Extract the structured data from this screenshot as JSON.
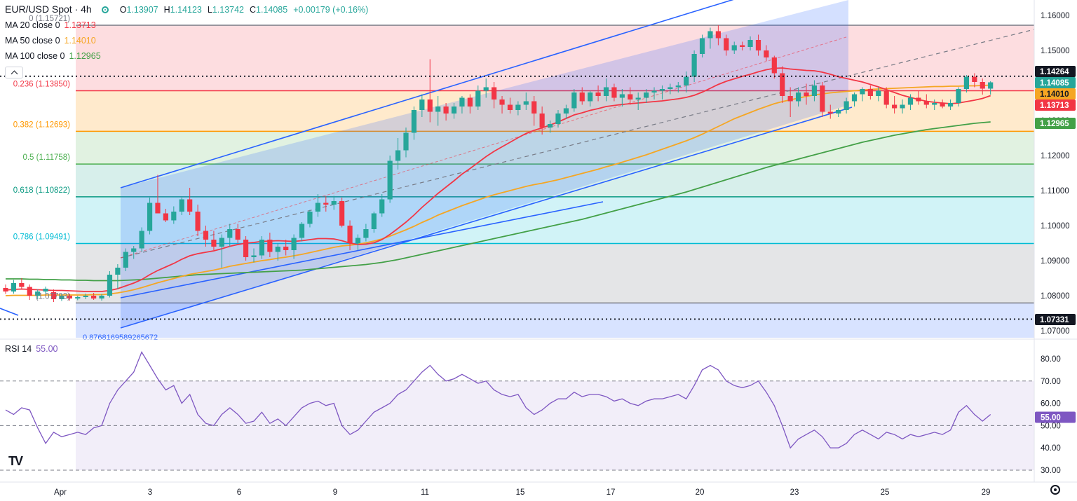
{
  "header": {
    "symbol": "EUR/USD Spot · 4h",
    "open_label": "O",
    "open": "1.13907",
    "high_label": "H",
    "high": "1.14123",
    "low_label": "L",
    "low": "1.13742",
    "close_label": "C",
    "close": "1.14085",
    "change": "+0.00179 (+0.16%)"
  },
  "indicators": [
    {
      "label": "MA 20 close 0",
      "value": "1.13713",
      "color": "#f23645"
    },
    {
      "label": "MA 50 close 0",
      "value": "1.14010",
      "color": "#f5a623"
    },
    {
      "label": "MA 100 close 0",
      "value": "1.12965",
      "color": "#43a047"
    }
  ],
  "rsi": {
    "label": "RSI 14",
    "value": "55.00",
    "color": "#7e57c2"
  },
  "colors": {
    "up": "#26a69a",
    "down": "#f23645",
    "ma20": "#f23645",
    "ma50": "#f5a623",
    "ma100": "#43a047",
    "rsi": "#7e57c2",
    "channel": "#2962ff"
  },
  "chart_data": {
    "type": "candlestick",
    "price_axis": {
      "ticks": [
        "1.16000",
        "1.15000",
        "1.14000",
        "1.13000",
        "1.12000",
        "1.11000",
        "1.10000",
        "1.09000",
        "1.08000",
        "1.07000"
      ],
      "ylim": [
        1.066,
        1.1645
      ]
    },
    "rsi_axis": {
      "ticks": [
        "80.00",
        "70.00",
        "60.00",
        "50.00",
        "40.00",
        "30.00"
      ],
      "ylim": [
        25,
        87
      ],
      "bands": [
        30,
        50,
        70
      ]
    },
    "x_axis": {
      "ticks": [
        "Apr",
        "3",
        "6",
        "9",
        "11",
        "15",
        "17",
        "20",
        "23",
        "25",
        "29"
      ]
    },
    "fib_levels": [
      {
        "ratio": "0",
        "label": "0 (1.15721)",
        "price": 1.15721,
        "color": "#787b86"
      },
      {
        "ratio": "0.236",
        "label": "0.236 (1.13850)",
        "price": 1.1385,
        "color": "#f23645"
      },
      {
        "ratio": "0.382",
        "label": "0.382 (1.12693)",
        "price": 1.12693,
        "color": "#ff9800"
      },
      {
        "ratio": "0.5",
        "label": "0.5 (1.11758)",
        "price": 1.11758,
        "color": "#4caf50"
      },
      {
        "ratio": "0.618",
        "label": "0.618 (1.10822)",
        "price": 1.10822,
        "color": "#089981"
      },
      {
        "ratio": "0.786",
        "label": "0.786 (1.09491)",
        "price": 1.09491,
        "color": "#00bcd4"
      },
      {
        "ratio": "1",
        "label": "(1.07793)",
        "price": 1.07793,
        "color": "#787b86"
      }
    ],
    "fib_bottom_label": "0.8768169589265672",
    "price_labels": [
      {
        "value": "1.14264",
        "price": 1.14264,
        "bg": "#131722",
        "fg": "#ffffff"
      },
      {
        "value": "1.14085",
        "price": 1.14085,
        "bg": "#26a69a",
        "fg": "#ffffff"
      },
      {
        "value": "1.14010",
        "price": 1.1401,
        "bg": "#f5a623",
        "fg": "#131722"
      },
      {
        "value": "1.13713",
        "price": 1.13713,
        "bg": "#f23645",
        "fg": "#ffffff"
      },
      {
        "value": "1.12965",
        "price": 1.12965,
        "bg": "#43a047",
        "fg": "#ffffff"
      },
      {
        "value": "1.07331",
        "price": 1.07331,
        "bg": "#131722",
        "fg": "#ffffff"
      }
    ],
    "dotted_levels": [
      1.14264,
      1.07331
    ],
    "rsi_price_label": {
      "value": "55.00",
      "level": 55,
      "bg": "#7e57c2",
      "fg": "#ffffff"
    },
    "candles": [
      [
        1.0822,
        1.0832,
        1.0805,
        1.0812
      ],
      [
        1.0812,
        1.0845,
        1.0806,
        1.0836
      ],
      [
        1.0836,
        1.085,
        1.0818,
        1.0825
      ],
      [
        1.0825,
        1.0832,
        1.0788,
        1.08
      ],
      [
        1.08,
        1.0818,
        1.079,
        1.0812
      ],
      [
        1.0812,
        1.0826,
        1.0805,
        1.082
      ],
      [
        1.081,
        1.0818,
        1.0782,
        1.079
      ],
      [
        1.079,
        1.0804,
        1.0785,
        1.08
      ],
      [
        1.08,
        1.0806,
        1.0786,
        1.0792
      ],
      [
        1.0792,
        1.08,
        1.0787,
        1.0796
      ],
      [
        1.0796,
        1.0806,
        1.079,
        1.08
      ],
      [
        1.08,
        1.0808,
        1.0788,
        1.0792
      ],
      [
        1.0792,
        1.0805,
        1.0786,
        1.08
      ],
      [
        1.08,
        1.087,
        1.0795,
        1.086
      ],
      [
        1.086,
        1.089,
        1.082,
        1.088
      ],
      [
        1.088,
        1.0935,
        1.087,
        1.0925
      ],
      [
        1.0925,
        1.0942,
        1.0905,
        1.0935
      ],
      [
        1.0935,
        1.0995,
        1.0925,
        1.0985
      ],
      [
        1.0985,
        1.108,
        1.0975,
        1.1065
      ],
      [
        1.1065,
        1.1145,
        1.104,
        1.1035
      ],
      [
        1.1035,
        1.1048,
        1.101,
        1.1015
      ],
      [
        1.1015,
        1.1055,
        1.1005,
        1.104
      ],
      [
        1.104,
        1.108,
        1.103,
        1.1075
      ],
      [
        1.1075,
        1.1108,
        1.103,
        1.104
      ],
      [
        1.104,
        1.106,
        1.097,
        1.0985
      ],
      [
        1.0985,
        1.1,
        1.094,
        1.096
      ],
      [
        1.096,
        1.0985,
        1.093,
        1.094
      ],
      [
        1.094,
        1.0975,
        1.088,
        1.0965
      ],
      [
        1.0965,
        1.1005,
        1.094,
        1.099
      ],
      [
        1.099,
        1.1005,
        1.095,
        1.096
      ],
      [
        1.096,
        1.097,
        1.09,
        1.091
      ],
      [
        1.091,
        1.0935,
        1.0895,
        1.0915
      ],
      [
        1.0915,
        1.097,
        1.0905,
        1.096
      ],
      [
        1.096,
        1.098,
        1.091,
        1.0925
      ],
      [
        1.0925,
        1.095,
        1.09,
        1.094
      ],
      [
        1.094,
        1.096,
        1.0915,
        1.093
      ],
      [
        1.093,
        1.0975,
        1.0905,
        1.0965
      ],
      [
        1.0965,
        1.101,
        1.0955,
        1.1005
      ],
      [
        1.1005,
        1.1045,
        1.0995,
        1.104
      ],
      [
        1.104,
        1.109,
        1.1025,
        1.1065
      ],
      [
        1.1065,
        1.1085,
        1.104,
        1.106
      ],
      [
        1.106,
        1.1085,
        1.1045,
        1.107
      ],
      [
        1.107,
        1.108,
        1.0995,
        1.1
      ],
      [
        1.1,
        1.1015,
        1.093,
        1.095
      ],
      [
        1.095,
        1.0975,
        1.093,
        1.0965
      ],
      [
        1.0965,
        1.1005,
        1.0955,
        1.099
      ],
      [
        1.099,
        1.104,
        1.098,
        1.1035
      ],
      [
        1.1035,
        1.109,
        1.1025,
        1.1075
      ],
      [
        1.1075,
        1.12,
        1.1065,
        1.1185
      ],
      [
        1.1185,
        1.125,
        1.116,
        1.1215
      ],
      [
        1.1215,
        1.128,
        1.1195,
        1.1265
      ],
      [
        1.1265,
        1.134,
        1.1245,
        1.133
      ],
      [
        1.133,
        1.1375,
        1.131,
        1.136
      ],
      [
        1.136,
        1.1475,
        1.1295,
        1.1325
      ],
      [
        1.1325,
        1.137,
        1.1285,
        1.134
      ],
      [
        1.134,
        1.135,
        1.13,
        1.132
      ],
      [
        1.132,
        1.135,
        1.1305,
        1.134
      ],
      [
        1.134,
        1.137,
        1.132,
        1.1365
      ],
      [
        1.1365,
        1.1375,
        1.132,
        1.134
      ],
      [
        1.134,
        1.14,
        1.133,
        1.1385
      ],
      [
        1.1385,
        1.142,
        1.1365,
        1.1395
      ],
      [
        1.1395,
        1.141,
        1.1335,
        1.136
      ],
      [
        1.136,
        1.137,
        1.132,
        1.1345
      ],
      [
        1.1345,
        1.1365,
        1.132,
        1.133
      ],
      [
        1.133,
        1.1355,
        1.1315,
        1.1345
      ],
      [
        1.1345,
        1.138,
        1.133,
        1.1355
      ],
      [
        1.1355,
        1.137,
        1.1285,
        1.132
      ],
      [
        1.132,
        1.134,
        1.126,
        1.128
      ],
      [
        1.128,
        1.13,
        1.1265,
        1.129
      ],
      [
        1.129,
        1.133,
        1.128,
        1.132
      ],
      [
        1.132,
        1.1345,
        1.1305,
        1.1335
      ],
      [
        1.1335,
        1.139,
        1.1325,
        1.138
      ],
      [
        1.138,
        1.1395,
        1.1345,
        1.1355
      ],
      [
        1.1355,
        1.1385,
        1.134,
        1.138
      ],
      [
        1.138,
        1.14,
        1.1355,
        1.137
      ],
      [
        1.137,
        1.142,
        1.1355,
        1.1395
      ],
      [
        1.1395,
        1.1405,
        1.1355,
        1.1365
      ],
      [
        1.1365,
        1.139,
        1.134,
        1.1375
      ],
      [
        1.1375,
        1.1395,
        1.1345,
        1.136
      ],
      [
        1.136,
        1.138,
        1.133,
        1.1365
      ],
      [
        1.1365,
        1.139,
        1.135,
        1.138
      ],
      [
        1.138,
        1.1395,
        1.136,
        1.1385
      ],
      [
        1.1385,
        1.14,
        1.136,
        1.139
      ],
      [
        1.139,
        1.1405,
        1.1375,
        1.1395
      ],
      [
        1.1395,
        1.141,
        1.138,
        1.14
      ],
      [
        1.14,
        1.144,
        1.138,
        1.1425
      ],
      [
        1.1425,
        1.15,
        1.141,
        1.149
      ],
      [
        1.149,
        1.1545,
        1.148,
        1.1535
      ],
      [
        1.1535,
        1.1565,
        1.1505,
        1.1555
      ],
      [
        1.1555,
        1.1572,
        1.1515,
        1.1535
      ],
      [
        1.1535,
        1.1545,
        1.1485,
        1.15
      ],
      [
        1.15,
        1.1525,
        1.149,
        1.1515
      ],
      [
        1.1515,
        1.1525,
        1.15,
        1.151
      ],
      [
        1.151,
        1.154,
        1.15,
        1.153
      ],
      [
        1.153,
        1.1545,
        1.1485,
        1.15
      ],
      [
        1.15,
        1.1515,
        1.147,
        1.148
      ],
      [
        1.148,
        1.1485,
        1.142,
        1.1435
      ],
      [
        1.1435,
        1.1455,
        1.135,
        1.137
      ],
      [
        1.137,
        1.1395,
        1.131,
        1.1355
      ],
      [
        1.1355,
        1.1395,
        1.134,
        1.138
      ],
      [
        1.138,
        1.1405,
        1.1345,
        1.137
      ],
      [
        1.137,
        1.1415,
        1.1355,
        1.14
      ],
      [
        1.14,
        1.141,
        1.131,
        1.1325
      ],
      [
        1.1325,
        1.1345,
        1.1305,
        1.132
      ],
      [
        1.132,
        1.1335,
        1.131,
        1.133
      ],
      [
        1.133,
        1.1365,
        1.132,
        1.1355
      ],
      [
        1.1355,
        1.138,
        1.134,
        1.1375
      ],
      [
        1.1375,
        1.1395,
        1.1355,
        1.139
      ],
      [
        1.139,
        1.14,
        1.136,
        1.137
      ],
      [
        1.137,
        1.1395,
        1.1355,
        1.1385
      ],
      [
        1.1385,
        1.1395,
        1.1335,
        1.1345
      ],
      [
        1.1345,
        1.137,
        1.132,
        1.1335
      ],
      [
        1.1335,
        1.136,
        1.132,
        1.1345
      ],
      [
        1.1345,
        1.1375,
        1.133,
        1.1365
      ],
      [
        1.1365,
        1.1385,
        1.1345,
        1.1355
      ],
      [
        1.1355,
        1.1375,
        1.1335,
        1.1345
      ],
      [
        1.1345,
        1.136,
        1.133,
        1.135
      ],
      [
        1.135,
        1.136,
        1.1335,
        1.134
      ],
      [
        1.134,
        1.136,
        1.133,
        1.135
      ],
      [
        1.135,
        1.1395,
        1.134,
        1.139
      ],
      [
        1.139,
        1.143,
        1.138,
        1.1425
      ],
      [
        1.1425,
        1.1435,
        1.1395,
        1.141
      ],
      [
        1.141,
        1.142,
        1.1374,
        1.1391
      ],
      [
        1.1391,
        1.1412,
        1.1374,
        1.1409
      ]
    ],
    "ma20": [
      1.0816,
      1.0818,
      1.0819,
      1.0818,
      1.0817,
      1.0816,
      1.0815,
      1.0815,
      1.0814,
      1.0813,
      1.0812,
      1.0812,
      1.0812,
      1.0815,
      1.082,
      1.0828,
      1.0836,
      1.0846,
      1.086,
      1.0872,
      1.0882,
      1.0892,
      1.0904,
      1.0914,
      1.092,
      1.0924,
      1.0928,
      1.0934,
      1.0941,
      1.0946,
      1.095,
      1.0952,
      1.0955,
      1.0956,
      1.0957,
      1.0956,
      1.0955,
      1.0957,
      1.096,
      1.0963,
      1.0963,
      1.0962,
      1.0957,
      1.095,
      1.0946,
      1.0947,
      1.0951,
      1.096,
      1.0975,
      1.0992,
      1.101,
      1.103,
      1.1052,
      1.1072,
      1.1092,
      1.111,
      1.1128,
      1.1147,
      1.1163,
      1.118,
      1.1197,
      1.1212,
      1.1225,
      1.1238,
      1.1251,
      1.1263,
      1.1272,
      1.1279,
      1.1287,
      1.1296,
      1.1306,
      1.1316,
      1.1322,
      1.1329,
      1.1334,
      1.134,
      1.1343,
      1.1346,
      1.1348,
      1.135,
      1.1352,
      1.1354,
      1.1356,
      1.1359,
      1.1362,
      1.1366,
      1.1372,
      1.1381,
      1.1392,
      1.1403,
      1.1412,
      1.1419,
      1.1426,
      1.1432,
      1.1439,
      1.1445,
      1.1449,
      1.145,
      1.1447,
      1.1445,
      1.1443,
      1.1442,
      1.1438,
      1.1432,
      1.1425,
      1.142,
      1.1415,
      1.141,
      1.1403,
      1.1396,
      1.1388,
      1.138,
      1.1372,
      1.1366,
      1.136,
      1.1355,
      1.1352,
      1.135,
      1.1348,
      1.135,
      1.1354,
      1.1358,
      1.1363,
      1.1371
    ],
    "ma50": [
      1.08,
      1.0801,
      1.0801,
      1.0801,
      1.0801,
      1.0802,
      1.0802,
      1.0802,
      1.0802,
      1.0802,
      1.0802,
      1.0803,
      1.0803,
      1.0805,
      1.0808,
      1.0812,
      1.0817,
      1.0823,
      1.083,
      1.0837,
      1.0843,
      1.0849,
      1.0855,
      1.0861,
      1.0865,
      1.0869,
      1.0873,
      1.0878,
      1.0884,
      1.0888,
      1.0892,
      1.0896,
      1.09,
      1.0903,
      1.0907,
      1.091,
      1.0914,
      1.0918,
      1.0923,
      1.0928,
      1.0933,
      1.0938,
      1.0942,
      1.0944,
      1.0947,
      1.0951,
      1.0956,
      1.0962,
      1.097,
      1.0979,
      1.0988,
      1.0998,
      1.1009,
      1.1019,
      1.103,
      1.1039,
      1.1048,
      1.1057,
      1.1065,
      1.1073,
      1.1081,
      1.1088,
      1.1094,
      1.11,
      1.1106,
      1.1112,
      1.1117,
      1.1121,
      1.1126,
      1.1131,
      1.1137,
      1.1143,
      1.1149,
      1.1155,
      1.1161,
      1.1168,
      1.1174,
      1.1181,
      1.1188,
      1.1195,
      1.1202,
      1.121,
      1.1218,
      1.1226,
      1.1234,
      1.1242,
      1.1251,
      1.1261,
      1.1272,
      1.1283,
      1.1294,
      1.1305,
      1.1314,
      1.1323,
      1.1332,
      1.134,
      1.1348,
      1.1354,
      1.1359,
      1.1364,
      1.1369,
      1.1373,
      1.1376,
      1.1379,
      1.1381,
      1.1383,
      1.1385,
      1.1387,
      1.1389,
      1.139,
      1.1391,
      1.1392,
      1.1393,
      1.1394,
      1.1395,
      1.1396,
      1.1397,
      1.1397,
      1.1398,
      1.1398,
      1.1399,
      1.1399,
      1.14,
      1.1401
    ],
    "ma100": [
      1.0848,
      1.0848,
      1.0848,
      1.0847,
      1.0847,
      1.0846,
      1.0846,
      1.0845,
      1.0845,
      1.0844,
      1.0844,
      1.0843,
      1.0843,
      1.0843,
      1.0843,
      1.0844,
      1.0845,
      1.0846,
      1.0848,
      1.085,
      1.0852,
      1.0854,
      1.0856,
      1.0858,
      1.086,
      1.0861,
      1.0862,
      1.0863,
      1.0864,
      1.0865,
      1.0866,
      1.0867,
      1.0868,
      1.0869,
      1.087,
      1.0871,
      1.0872,
      1.0873,
      1.0875,
      1.0877,
      1.0879,
      1.0881,
      1.0883,
      1.0885,
      1.0887,
      1.0889,
      1.0892,
      1.0895,
      1.0899,
      1.0903,
      1.0908,
      1.0913,
      1.0918,
      1.0923,
      1.0928,
      1.0933,
      1.0938,
      1.0943,
      1.0948,
      1.0953,
      1.0958,
      1.0963,
      1.0968,
      1.0973,
      1.0978,
      1.0983,
      1.0988,
      1.0993,
      1.0998,
      1.1003,
      1.1008,
      1.1013,
      1.1018,
      1.1024,
      1.103,
      1.1036,
      1.1042,
      1.1048,
      1.1054,
      1.106,
      1.1066,
      1.1072,
      1.1078,
      1.1084,
      1.109,
      1.1096,
      1.1103,
      1.111,
      1.1117,
      1.1124,
      1.1131,
      1.1138,
      1.1145,
      1.1152,
      1.1159,
      1.1166,
      1.1172,
      1.1178,
      1.1184,
      1.119,
      1.1196,
      1.1202,
      1.1208,
      1.1214,
      1.122,
      1.1226,
      1.1232,
      1.1238,
      1.1243,
      1.1248,
      1.1253,
      1.1258,
      1.1262,
      1.1266,
      1.127,
      1.1274,
      1.1277,
      1.128,
      1.1283,
      1.1286,
      1.1289,
      1.1292,
      1.1294,
      1.1296
    ],
    "rsi_values": [
      57,
      55,
      58,
      57,
      49,
      42,
      47,
      45,
      46,
      47,
      46,
      49,
      50,
      60,
      66,
      70,
      74,
      83,
      77,
      71,
      66,
      68,
      60,
      64,
      55,
      51,
      50,
      55,
      58,
      55,
      51,
      52,
      56,
      51,
      53,
      50,
      54,
      58,
      60,
      61,
      59,
      60,
      50,
      46,
      48,
      52,
      56,
      58,
      60,
      64,
      66,
      70,
      74,
      77,
      73,
      70,
      71,
      73,
      71,
      69,
      70,
      66,
      64,
      63,
      64,
      58,
      55,
      57,
      60,
      62,
      62,
      65,
      63,
      64,
      64,
      63,
      61,
      62,
      60,
      59,
      61,
      62,
      62,
      63,
      64,
      62,
      68,
      75,
      77,
      75,
      70,
      68,
      67,
      68,
      70,
      65,
      59,
      50,
      40,
      44,
      46,
      48,
      45,
      40,
      40,
      42,
      46,
      48,
      46,
      44,
      47,
      46,
      44,
      46,
      45,
      46,
      47,
      46,
      48,
      56,
      59,
      55,
      52,
      55
    ]
  }
}
